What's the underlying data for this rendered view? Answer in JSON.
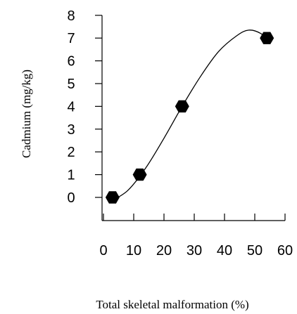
{
  "chart_data": {
    "type": "scatter",
    "title": "",
    "xlabel": "Total skeletal malformation (%)",
    "ylabel": "Cadmium (mg/kg)",
    "xlim": [
      0,
      60
    ],
    "ylim": [
      0,
      8
    ],
    "x_ticks": [
      0,
      10,
      20,
      30,
      40,
      50,
      60
    ],
    "y_ticks": [
      0,
      1,
      2,
      3,
      4,
      5,
      6,
      7,
      8
    ],
    "grid": false,
    "legend": "none",
    "series": [
      {
        "marker": "hexagon",
        "color": "#000000",
        "points": [
          {
            "x": 3,
            "y": 0
          },
          {
            "x": 12,
            "y": 1
          },
          {
            "x": 26,
            "y": 4
          },
          {
            "x": 54,
            "y": 7
          }
        ]
      }
    ],
    "fit_curve": [
      {
        "x": 2,
        "y": -0.2
      },
      {
        "x": 8,
        "y": 0.3
      },
      {
        "x": 14,
        "y": 1.3
      },
      {
        "x": 20,
        "y": 2.6
      },
      {
        "x": 26,
        "y": 4.0
      },
      {
        "x": 32,
        "y": 5.3
      },
      {
        "x": 38,
        "y": 6.4
      },
      {
        "x": 44,
        "y": 7.1
      },
      {
        "x": 48,
        "y": 7.35
      },
      {
        "x": 52,
        "y": 7.2
      },
      {
        "x": 54.5,
        "y": 6.85
      }
    ]
  }
}
